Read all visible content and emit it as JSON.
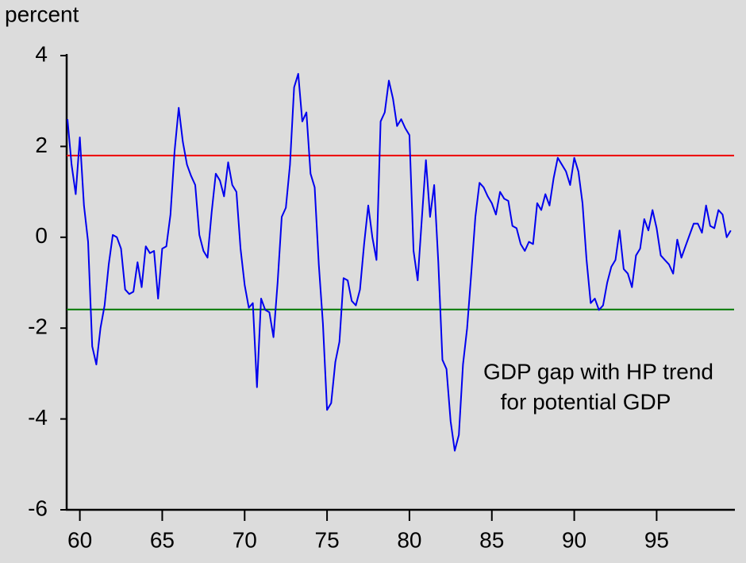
{
  "chart_data": {
    "type": "line",
    "y_label": "percent",
    "annotation": [
      "GDP gap with HP trend",
      "for potential GDP"
    ],
    "x": [
      59.25,
      59.5,
      59.75,
      60,
      60.25,
      60.5,
      60.75,
      61,
      61.25,
      61.5,
      61.75,
      62,
      62.25,
      62.5,
      62.75,
      63,
      63.25,
      63.5,
      63.75,
      64,
      64.25,
      64.5,
      64.75,
      65,
      65.25,
      65.5,
      65.75,
      66,
      66.25,
      66.5,
      66.75,
      67,
      67.25,
      67.5,
      67.75,
      68,
      68.25,
      68.5,
      68.75,
      69,
      69.25,
      69.5,
      69.75,
      70,
      70.25,
      70.5,
      70.75,
      71,
      71.25,
      71.5,
      71.75,
      72,
      72.25,
      72.5,
      72.75,
      73,
      73.25,
      73.5,
      73.75,
      74,
      74.25,
      74.5,
      74.75,
      75,
      75.25,
      75.5,
      75.75,
      76,
      76.25,
      76.5,
      76.75,
      77,
      77.25,
      77.5,
      77.75,
      78,
      78.25,
      78.5,
      78.75,
      79,
      79.25,
      79.5,
      79.75,
      80,
      80.25,
      80.5,
      80.75,
      81,
      81.25,
      81.5,
      81.75,
      82,
      82.25,
      82.5,
      82.75,
      83,
      83.25,
      83.5,
      83.75,
      84,
      84.25,
      84.5,
      84.75,
      85,
      85.25,
      85.5,
      85.75,
      86,
      86.25,
      86.5,
      86.75,
      87,
      87.25,
      87.5,
      87.75,
      88,
      88.25,
      88.5,
      88.75,
      89,
      89.25,
      89.5,
      89.75,
      90,
      90.25,
      90.5,
      90.75,
      91,
      91.25,
      91.5,
      91.75,
      92,
      92.25,
      92.5,
      92.75,
      93,
      93.25,
      93.5,
      93.75,
      94,
      94.25,
      94.5,
      94.75,
      95,
      95.25,
      95.5,
      95.75,
      96,
      96.25,
      96.5,
      96.75,
      97,
      97.25,
      97.5,
      97.75,
      98,
      98.25,
      98.5,
      98.75,
      99,
      99.25,
      99.5
    ],
    "series": [
      {
        "color": "#0000ee",
        "values": [
          2.6,
          1.6,
          0.95,
          2.2,
          0.7,
          -0.1,
          -2.4,
          -2.8,
          -2.0,
          -1.5,
          -0.6,
          0.05,
          0.0,
          -0.25,
          -1.15,
          -1.25,
          -1.2,
          -0.55,
          -1.1,
          -0.2,
          -0.35,
          -0.3,
          -1.35,
          -0.25,
          -0.2,
          0.5,
          1.9,
          2.85,
          2.1,
          1.6,
          1.35,
          1.15,
          0.05,
          -0.3,
          -0.45,
          0.55,
          1.4,
          1.25,
          0.9,
          1.65,
          1.15,
          1.0,
          -0.25,
          -1.05,
          -1.55,
          -1.45,
          -3.3,
          -1.35,
          -1.6,
          -1.65,
          -2.2,
          -1.0,
          0.45,
          0.65,
          1.6,
          3.3,
          3.6,
          2.55,
          2.75,
          1.4,
          1.1,
          -0.6,
          -1.9,
          -3.8,
          -3.65,
          -2.75,
          -2.3,
          -0.9,
          -0.95,
          -1.4,
          -1.5,
          -1.15,
          -0.15,
          0.7,
          0.0,
          -0.5,
          2.55,
          2.75,
          3.45,
          3.05,
          2.45,
          2.6,
          2.4,
          2.25,
          -0.3,
          -0.95,
          0.4,
          1.7,
          0.45,
          1.15,
          -0.55,
          -2.7,
          -2.9,
          -4.05,
          -4.7,
          -4.35,
          -2.8,
          -2.0,
          -0.8,
          0.45,
          1.2,
          1.1,
          0.9,
          0.75,
          0.5,
          1.0,
          0.85,
          0.8,
          0.25,
          0.2,
          -0.15,
          -0.3,
          -0.1,
          -0.15,
          0.75,
          0.6,
          0.95,
          0.7,
          1.3,
          1.75,
          1.6,
          1.45,
          1.15,
          1.75,
          1.45,
          0.75,
          -0.5,
          -1.45,
          -1.35,
          -1.6,
          -1.5,
          -1.0,
          -0.65,
          -0.5,
          0.15,
          -0.7,
          -0.8,
          -1.1,
          -0.4,
          -0.25,
          0.4,
          0.15,
          0.6,
          0.2,
          -0.4,
          -0.5,
          -0.6,
          -0.8,
          -0.05,
          -0.45,
          -0.2,
          0.05,
          0.3,
          0.3,
          0.1,
          0.7,
          0.25,
          0.2,
          0.6,
          0.5,
          0.0,
          0.15
        ]
      }
    ],
    "hlines": [
      {
        "value": 1.8,
        "color": "#ee0000"
      },
      {
        "value": -1.59,
        "color": "#007700"
      }
    ],
    "xlim": [
      59.2,
      99.7
    ],
    "xticks": [
      60,
      65,
      70,
      75,
      80,
      85,
      90,
      95
    ],
    "ylim": [
      -6,
      4
    ],
    "yticks": [
      4,
      2,
      0,
      -2,
      -4,
      -6
    ]
  }
}
